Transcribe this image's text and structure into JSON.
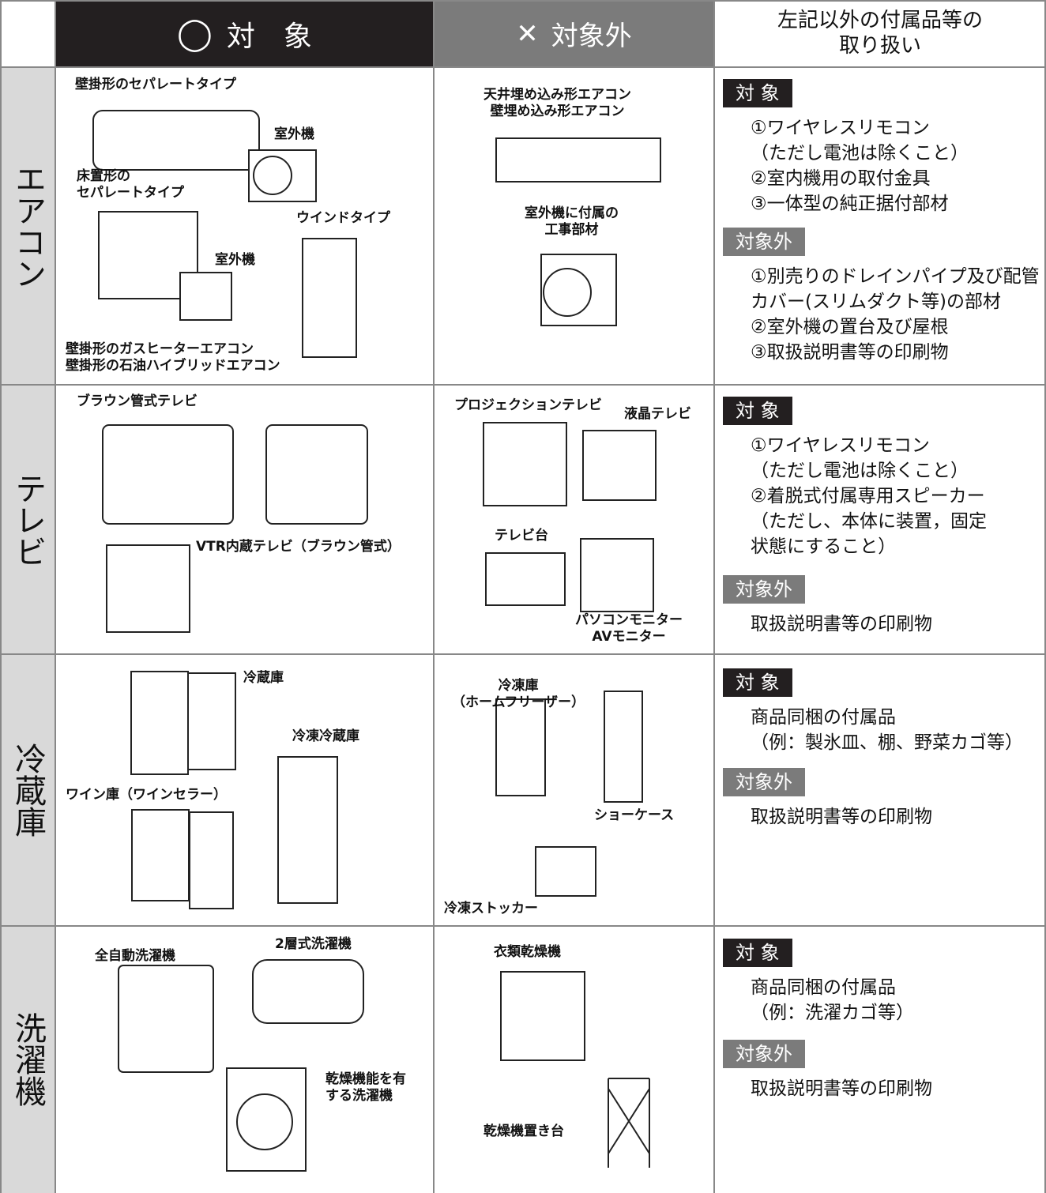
{
  "header": {
    "included_mark": "◯",
    "included": "対　象",
    "excluded_mark": "✕",
    "excluded": "対象外",
    "others": "左記以外の付属品等の\n取り扱い"
  },
  "rows": [
    {
      "label": "エアコン",
      "included_items": [
        "壁掛形のセパレートタイプ",
        "室外機",
        "床置形の\nセパレートタイプ",
        "ウインドタイプ",
        "室外機",
        "壁掛形のガスヒーターエアコン\n壁掛形の石油ハイブリッドエアコン"
      ],
      "excluded_items": [
        "天井埋め込み形エアコン\n壁埋め込み形エアコン",
        "室外機に付属の\n工事部材"
      ],
      "others": {
        "included_title": "対 象",
        "included": [
          "①ワイヤレスリモコン",
          "（ただし電池は除くこと）",
          "②室内機用の取付金具",
          "③一体型の純正据付部材"
        ],
        "excluded_title": "対象外",
        "excluded": [
          "①別売りのドレインパイプ及び配管",
          "カバー(スリムダクト等)の部材",
          "②室外機の置台及び屋根",
          "③取扱説明書等の印刷物"
        ]
      }
    },
    {
      "label": "テレビ",
      "included_items": [
        "ブラウン管式テレビ",
        "VTR内蔵テレビ（ブラウン管式）"
      ],
      "excluded_items": [
        "プロジェクションテレビ",
        "液晶テレビ",
        "テレビ台",
        "パソコンモニター\nAVモニター"
      ],
      "others": {
        "included_title": "対 象",
        "included": [
          "①ワイヤレスリモコン",
          "（ただし電池は除くこと）",
          "②着脱式付属専用スピーカー",
          "（ただし、本体に装置，固定",
          "状態にすること）"
        ],
        "excluded_title": "対象外",
        "excluded": [
          "取扱説明書等の印刷物"
        ]
      }
    },
    {
      "label": "冷蔵庫",
      "included_items": [
        "冷蔵庫",
        "冷凍冷蔵庫",
        "ワイン庫（ワインセラー）"
      ],
      "excluded_items": [
        "冷凍庫\n（ホームフリーザー）",
        "ショーケース",
        "冷凍ストッカー"
      ],
      "others": {
        "included_title": "対 象",
        "included": [
          "商品同梱の付属品",
          "（例：製氷皿、棚、野菜カゴ等）"
        ],
        "excluded_title": "対象外",
        "excluded": [
          "取扱説明書等の印刷物"
        ]
      }
    },
    {
      "label": "洗濯機",
      "included_items": [
        "全自動洗濯機",
        "2層式洗濯機",
        "乾燥機能を有\nする洗濯機"
      ],
      "excluded_items": [
        "衣類乾燥機",
        "乾燥機置き台"
      ],
      "others": {
        "included_title": "対 象",
        "included": [
          "商品同梱の付属品",
          "（例：洗濯カゴ等）"
        ],
        "excluded_title": "対象外",
        "excluded": [
          "取扱説明書等の印刷物"
        ]
      }
    }
  ]
}
